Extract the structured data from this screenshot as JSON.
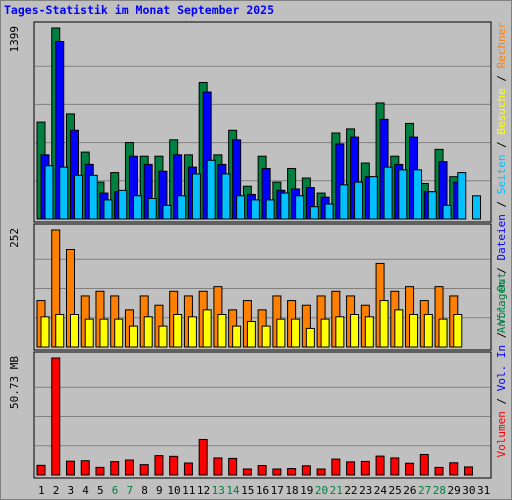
{
  "chart_data": {
    "type": "bar",
    "title": "Tages-Statistik im Monat September 2025",
    "days": [
      "1",
      "2",
      "3",
      "4",
      "5",
      "6",
      "7",
      "8",
      "9",
      "10",
      "11",
      "12",
      "13",
      "14",
      "15",
      "16",
      "17",
      "18",
      "19",
      "20",
      "21",
      "22",
      "23",
      "24",
      "25",
      "26",
      "27",
      "28",
      "29",
      "30",
      "31"
    ],
    "weekend_days": [
      "6",
      "7",
      "13",
      "14",
      "20",
      "21",
      "27",
      "28"
    ],
    "panels": [
      {
        "key": "hits",
        "ymax_label": "1399",
        "ymax": 1399,
        "series": [
          {
            "name": "Anfragen",
            "color": "#008040",
            "values": [
              710,
              1399,
              770,
              490,
              270,
              340,
              560,
              460,
              460,
              580,
              470,
              1000,
              470,
              650,
              240,
              460,
              270,
              370,
              300,
              190,
              630,
              660,
              410,
              850,
              460,
              700,
              260,
              510,
              310,
              0,
              0
            ]
          },
          {
            "name": "Dateien",
            "color": "#0000ff",
            "values": [
              470,
              1300,
              650,
              400,
              190,
              200,
              460,
              400,
              350,
              470,
              380,
              930,
              400,
              580,
              180,
              370,
              210,
              220,
              230,
              160,
              550,
              600,
              310,
              730,
              400,
              600,
              200,
              420,
              270,
              0,
              0
            ]
          },
          {
            "name": "Seiten",
            "color": "#00c0ff",
            "values": [
              390,
              380,
              320,
              320,
              140,
              210,
              170,
              150,
              100,
              170,
              330,
              430,
              330,
              170,
              140,
              140,
              190,
              170,
              90,
              110,
              250,
              270,
              310,
              380,
              360,
              360,
              200,
              100,
              340,
              170,
              0
            ]
          }
        ]
      },
      {
        "key": "visits",
        "ymax_label": "252",
        "ymax": 252,
        "series": [
          {
            "name": "Rechner",
            "color": "#ff8000",
            "values": [
              100,
              252,
              210,
              110,
              120,
              110,
              80,
              110,
              90,
              120,
              110,
              120,
              130,
              80,
              100,
              80,
              110,
              100,
              90,
              110,
              120,
              110,
              90,
              180,
              120,
              130,
              100,
              130,
              110,
              0,
              0
            ]
          },
          {
            "name": "Besuche",
            "color": "#ffff00",
            "values": [
              65,
              70,
              70,
              60,
              60,
              60,
              45,
              65,
              45,
              70,
              65,
              80,
              70,
              45,
              55,
              45,
              60,
              60,
              40,
              60,
              65,
              70,
              65,
              100,
              80,
              70,
              70,
              60,
              70,
              0,
              0
            ]
          }
        ]
      },
      {
        "key": "volume",
        "ymax_label": "50.73 MB",
        "ymax": 50.73,
        "series": [
          {
            "name": "Volumen",
            "color": "#ff0000",
            "values": [
              4.2,
              50.73,
              6.0,
              6.2,
              3.3,
              5.8,
              6.5,
              4.5,
              8.4,
              8.1,
              5.2,
              15.4,
              7.4,
              7.2,
              2.6,
              4.1,
              2.6,
              2.8,
              4.0,
              2.6,
              6.9,
              5.7,
              5.9,
              8.2,
              7.4,
              5.1,
              8.9,
              3.3,
              5.3,
              3.5,
              0
            ]
          }
        ]
      }
    ],
    "right_legend": {
      "top": [
        {
          "text": "Anfragen",
          "color": "#008040"
        },
        {
          "text": "Dateien",
          "color": "#0000ff"
        },
        {
          "text": "Seiten",
          "color": "#00c0ff"
        },
        {
          "text": "Besuche",
          "color": "#ffff00"
        },
        {
          "text": "Rechner",
          "color": "#ff8000"
        }
      ],
      "bottom": [
        {
          "text": "Volumen",
          "color": "#ff0000"
        },
        {
          "text": "Vol. In",
          "color": "#0000ff"
        },
        {
          "text": "Vol. Out",
          "color": "#008040"
        }
      ],
      "separator": " / "
    },
    "colors": {
      "title": "#0000ff",
      "weekend_label": "#008040",
      "weekday_label": "#000000",
      "background": "#c0c0c0",
      "grid": "#808080"
    }
  }
}
